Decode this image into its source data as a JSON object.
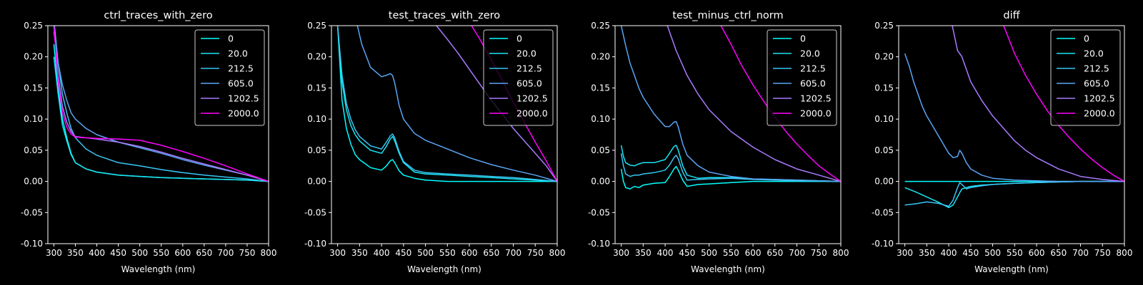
{
  "colors": {
    "background": "#000000",
    "axes": "#ffffff",
    "text": "#ffffff",
    "series": [
      "#00ffff",
      "#1ae5f5",
      "#39c6f5",
      "#5aa5f5",
      "#a97bff",
      "#ff00ff"
    ]
  },
  "chart_data": [
    {
      "type": "line",
      "title": "ctrl_traces_with_zero",
      "xlabel": "Wavelength (nm)",
      "ylabel": "",
      "xlim": [
        286,
        800
      ],
      "ylim": [
        -0.1,
        0.25
      ],
      "xticks": [
        300,
        350,
        400,
        450,
        500,
        550,
        600,
        650,
        700,
        750,
        800
      ],
      "yticks": [
        -0.1,
        -0.05,
        0.0,
        0.05,
        0.1,
        0.15,
        0.2,
        0.25
      ],
      "legend_position": "top-right",
      "series": [
        {
          "name": "0",
          "x": [
            300,
            310,
            320,
            330,
            340,
            350,
            375,
            400,
            450,
            500,
            550,
            600,
            650,
            700,
            750,
            800
          ],
          "y": [
            0.22,
            0.15,
            0.1,
            0.07,
            0.045,
            0.03,
            0.02,
            0.015,
            0.01,
            0.008,
            0.006,
            0.005,
            0.004,
            0.003,
            0.002,
            0.0
          ]
        },
        {
          "name": "20.0",
          "x": [
            300,
            310,
            320,
            330,
            340,
            350,
            375,
            400,
            450,
            500,
            550,
            600,
            650,
            700,
            750,
            800
          ],
          "y": [
            0.2,
            0.14,
            0.09,
            0.065,
            0.043,
            0.03,
            0.02,
            0.015,
            0.01,
            0.008,
            0.006,
            0.005,
            0.004,
            0.003,
            0.002,
            0.0
          ]
        },
        {
          "name": "212.5",
          "x": [
            300,
            310,
            320,
            330,
            340,
            350,
            375,
            400,
            450,
            500,
            550,
            600,
            650,
            700,
            750,
            800
          ],
          "y": [
            0.26,
            0.19,
            0.14,
            0.11,
            0.085,
            0.07,
            0.052,
            0.042,
            0.03,
            0.025,
            0.019,
            0.014,
            0.01,
            0.007,
            0.004,
            0.0
          ]
        },
        {
          "name": "605.0",
          "x": [
            300,
            310,
            320,
            330,
            340,
            350,
            375,
            400,
            450,
            500,
            550,
            600,
            650,
            700,
            750,
            800
          ],
          "y": [
            0.24,
            0.19,
            0.155,
            0.13,
            0.11,
            0.1,
            0.085,
            0.075,
            0.063,
            0.054,
            0.045,
            0.035,
            0.026,
            0.018,
            0.01,
            0.0
          ]
        },
        {
          "name": "1202.5",
          "x": [
            300,
            310,
            320,
            330,
            340,
            350,
            375,
            400,
            450,
            500,
            550,
            600,
            650,
            700,
            750,
            800
          ],
          "y": [
            0.25,
            0.17,
            0.12,
            0.095,
            0.08,
            0.072,
            0.07,
            0.068,
            0.063,
            0.056,
            0.047,
            0.037,
            0.028,
            0.019,
            0.01,
            0.0
          ]
        },
        {
          "name": "2000.0",
          "x": [
            300,
            310,
            320,
            330,
            340,
            350,
            375,
            400,
            450,
            500,
            550,
            600,
            650,
            700,
            750,
            800
          ],
          "y": [
            0.25,
            0.16,
            0.11,
            0.087,
            0.076,
            0.071,
            0.07,
            0.069,
            0.068,
            0.066,
            0.058,
            0.048,
            0.037,
            0.025,
            0.012,
            0.0
          ]
        }
      ]
    },
    {
      "type": "line",
      "title": "test_traces_with_zero",
      "xlabel": "Wavelength (nm)",
      "ylabel": "",
      "xlim": [
        286,
        800
      ],
      "ylim": [
        -0.1,
        0.25
      ],
      "xticks": [
        300,
        350,
        400,
        450,
        500,
        550,
        600,
        650,
        700,
        750,
        800
      ],
      "yticks": [
        -0.1,
        -0.05,
        0.0,
        0.05,
        0.1,
        0.15,
        0.2,
        0.25
      ],
      "legend_position": "top-right",
      "series": [
        {
          "name": "0",
          "x": [
            300,
            310,
            320,
            330,
            340,
            350,
            375,
            400,
            410,
            420,
            425,
            430,
            440,
            450,
            475,
            500,
            550,
            600,
            650,
            700,
            750,
            800
          ],
          "y": [
            0.25,
            0.13,
            0.085,
            0.06,
            0.043,
            0.035,
            0.022,
            0.018,
            0.024,
            0.033,
            0.035,
            0.03,
            0.017,
            0.01,
            0.005,
            0.002,
            0.0,
            0.0,
            0.0,
            0.0,
            0.0,
            0.0
          ]
        },
        {
          "name": "20.0",
          "x": [
            300,
            310,
            320,
            330,
            340,
            350,
            375,
            400,
            410,
            420,
            425,
            430,
            440,
            450,
            475,
            500,
            550,
            600,
            650,
            700,
            750,
            800
          ],
          "y": [
            0.25,
            0.16,
            0.115,
            0.09,
            0.075,
            0.065,
            0.05,
            0.045,
            0.055,
            0.068,
            0.072,
            0.065,
            0.045,
            0.03,
            0.015,
            0.012,
            0.01,
            0.008,
            0.006,
            0.004,
            0.002,
            0.0
          ]
        },
        {
          "name": "212.5",
          "x": [
            300,
            310,
            320,
            330,
            340,
            350,
            375,
            400,
            410,
            420,
            425,
            430,
            440,
            450,
            475,
            500,
            550,
            600,
            650,
            700,
            750,
            800
          ],
          "y": [
            0.25,
            0.17,
            0.125,
            0.1,
            0.083,
            0.072,
            0.057,
            0.052,
            0.062,
            0.073,
            0.076,
            0.07,
            0.048,
            0.032,
            0.018,
            0.014,
            0.012,
            0.01,
            0.008,
            0.006,
            0.003,
            0.0
          ]
        },
        {
          "name": "605.0",
          "x": [
            345,
            355,
            375,
            400,
            410,
            420,
            425,
            430,
            440,
            450,
            475,
            500,
            550,
            600,
            650,
            700,
            750,
            800
          ],
          "y": [
            0.25,
            0.22,
            0.183,
            0.168,
            0.17,
            0.173,
            0.17,
            0.158,
            0.122,
            0.1,
            0.077,
            0.066,
            0.052,
            0.038,
            0.027,
            0.018,
            0.01,
            0.0
          ]
        },
        {
          "name": "1202.5",
          "x": [
            525,
            550,
            575,
            600,
            625,
            650,
            675,
            700,
            725,
            750,
            775,
            800
          ],
          "y": [
            0.25,
            0.228,
            0.205,
            0.18,
            0.155,
            0.13,
            0.108,
            0.085,
            0.065,
            0.045,
            0.025,
            0.0
          ]
        },
        {
          "name": "2000.0",
          "x": [
            605,
            625,
            650,
            675,
            700,
            725,
            750,
            775,
            800
          ],
          "y": [
            0.25,
            0.227,
            0.195,
            0.162,
            0.127,
            0.095,
            0.063,
            0.033,
            0.0
          ]
        }
      ]
    },
    {
      "type": "line",
      "title": "test_minus_ctrl_norm",
      "xlabel": "Wavelength (nm)",
      "ylabel": "",
      "xlim": [
        286,
        800
      ],
      "ylim": [
        -0.1,
        0.25
      ],
      "xticks": [
        300,
        350,
        400,
        450,
        500,
        550,
        600,
        650,
        700,
        750,
        800
      ],
      "yticks": [
        -0.1,
        -0.05,
        0.0,
        0.05,
        0.1,
        0.15,
        0.2,
        0.25
      ],
      "legend_position": "top-right",
      "series": [
        {
          "name": "0",
          "x": [
            300,
            305,
            310,
            320,
            330,
            340,
            350,
            375,
            400,
            410,
            420,
            425,
            430,
            440,
            450,
            475,
            500,
            550,
            600,
            650,
            700,
            750,
            800
          ],
          "y": [
            0.02,
            0.0,
            -0.01,
            -0.012,
            -0.008,
            -0.01,
            -0.006,
            -0.003,
            -0.002,
            0.008,
            0.02,
            0.024,
            0.018,
            0.002,
            -0.008,
            -0.005,
            -0.004,
            -0.002,
            0.0,
            0.0,
            0.0,
            0.0,
            0.0
          ]
        },
        {
          "name": "20.0",
          "x": [
            300,
            305,
            310,
            320,
            330,
            340,
            350,
            375,
            400,
            410,
            420,
            425,
            430,
            440,
            450,
            475,
            500,
            550,
            600,
            650,
            700,
            750,
            800
          ],
          "y": [
            0.058,
            0.04,
            0.03,
            0.026,
            0.025,
            0.028,
            0.03,
            0.03,
            0.035,
            0.045,
            0.056,
            0.058,
            0.05,
            0.025,
            0.01,
            0.005,
            0.006,
            0.006,
            0.004,
            0.003,
            0.002,
            0.001,
            0.0
          ]
        },
        {
          "name": "212.5",
          "x": [
            300,
            305,
            310,
            320,
            330,
            340,
            350,
            375,
            400,
            410,
            420,
            425,
            430,
            440,
            450,
            475,
            500,
            550,
            600,
            650,
            700,
            750,
            800
          ],
          "y": [
            0.045,
            0.025,
            0.012,
            0.008,
            0.01,
            0.01,
            0.012,
            0.014,
            0.018,
            0.026,
            0.038,
            0.042,
            0.036,
            0.015,
            0.002,
            0.003,
            0.004,
            0.005,
            0.003,
            0.002,
            0.001,
            0.001,
            0.0
          ]
        },
        {
          "name": "605.0",
          "x": [
            300,
            310,
            320,
            330,
            340,
            350,
            375,
            400,
            410,
            420,
            425,
            430,
            440,
            450,
            475,
            500,
            550,
            600,
            650,
            700,
            750,
            800
          ],
          "y": [
            0.25,
            0.218,
            0.19,
            0.17,
            0.15,
            0.135,
            0.108,
            0.088,
            0.088,
            0.095,
            0.096,
            0.087,
            0.06,
            0.042,
            0.025,
            0.015,
            0.008,
            0.004,
            0.003,
            0.002,
            0.001,
            0.0
          ]
        },
        {
          "name": "1202.5",
          "x": [
            405,
            425,
            450,
            475,
            500,
            550,
            600,
            650,
            700,
            750,
            800
          ],
          "y": [
            0.25,
            0.21,
            0.17,
            0.14,
            0.115,
            0.08,
            0.055,
            0.035,
            0.02,
            0.01,
            0.0
          ]
        },
        {
          "name": "2000.0",
          "x": [
            527,
            550,
            575,
            600,
            625,
            650,
            675,
            700,
            725,
            750,
            775,
            800
          ],
          "y": [
            0.25,
            0.22,
            0.185,
            0.155,
            0.128,
            0.103,
            0.08,
            0.06,
            0.042,
            0.025,
            0.012,
            0.0
          ]
        }
      ]
    },
    {
      "type": "line",
      "title": "diff",
      "xlabel": "Wavelength (nm)",
      "ylabel": "",
      "xlim": [
        286,
        800
      ],
      "ylim": [
        -0.1,
        0.25
      ],
      "xticks": [
        300,
        350,
        400,
        450,
        500,
        550,
        600,
        650,
        700,
        750,
        800
      ],
      "yticks": [
        -0.1,
        -0.05,
        0.0,
        0.05,
        0.1,
        0.15,
        0.2,
        0.25
      ],
      "legend_position": "top-right",
      "series": [
        {
          "name": "0",
          "x": [
            300,
            800
          ],
          "y": [
            0.0,
            0.0
          ]
        },
        {
          "name": "20.0",
          "x": [
            300,
            325,
            350,
            375,
            400,
            410,
            420,
            425,
            430,
            440,
            450,
            475,
            500,
            550,
            600,
            650,
            700,
            750,
            800
          ],
          "y": [
            -0.01,
            -0.017,
            -0.025,
            -0.033,
            -0.042,
            -0.038,
            -0.025,
            -0.018,
            -0.012,
            -0.01,
            -0.008,
            -0.006,
            -0.005,
            -0.003,
            -0.002,
            -0.001,
            0.0,
            0.0,
            0.0
          ]
        },
        {
          "name": "212.5",
          "x": [
            300,
            325,
            350,
            375,
            400,
            410,
            420,
            425,
            430,
            440,
            450,
            475,
            500,
            550,
            600,
            650,
            700,
            750,
            800
          ],
          "y": [
            -0.038,
            -0.036,
            -0.033,
            -0.035,
            -0.04,
            -0.03,
            -0.01,
            -0.002,
            -0.005,
            -0.012,
            -0.01,
            -0.007,
            -0.005,
            -0.003,
            -0.002,
            -0.001,
            0.0,
            0.0,
            0.0
          ]
        },
        {
          "name": "605.0",
          "x": [
            300,
            310,
            320,
            330,
            340,
            350,
            375,
            400,
            410,
            420,
            425,
            430,
            440,
            450,
            475,
            500,
            550,
            600,
            650,
            700,
            750,
            800
          ],
          "y": [
            0.205,
            0.185,
            0.16,
            0.14,
            0.12,
            0.105,
            0.075,
            0.045,
            0.038,
            0.04,
            0.05,
            0.045,
            0.03,
            0.02,
            0.01,
            0.005,
            0.002,
            0.001,
            0.0,
            0.0,
            0.0,
            0.0
          ]
        },
        {
          "name": "1202.5",
          "x": [
            408,
            420,
            425,
            430,
            440,
            450,
            475,
            500,
            525,
            550,
            575,
            600,
            650,
            700,
            750,
            800
          ],
          "y": [
            0.25,
            0.21,
            0.205,
            0.2,
            0.18,
            0.16,
            0.13,
            0.105,
            0.085,
            0.065,
            0.05,
            0.038,
            0.02,
            0.008,
            0.003,
            0.0
          ]
        },
        {
          "name": "2000.0",
          "x": [
            525,
            550,
            575,
            600,
            625,
            650,
            675,
            700,
            725,
            750,
            775,
            800
          ],
          "y": [
            0.25,
            0.205,
            0.17,
            0.14,
            0.113,
            0.09,
            0.07,
            0.052,
            0.036,
            0.022,
            0.01,
            0.0
          ]
        }
      ]
    }
  ]
}
